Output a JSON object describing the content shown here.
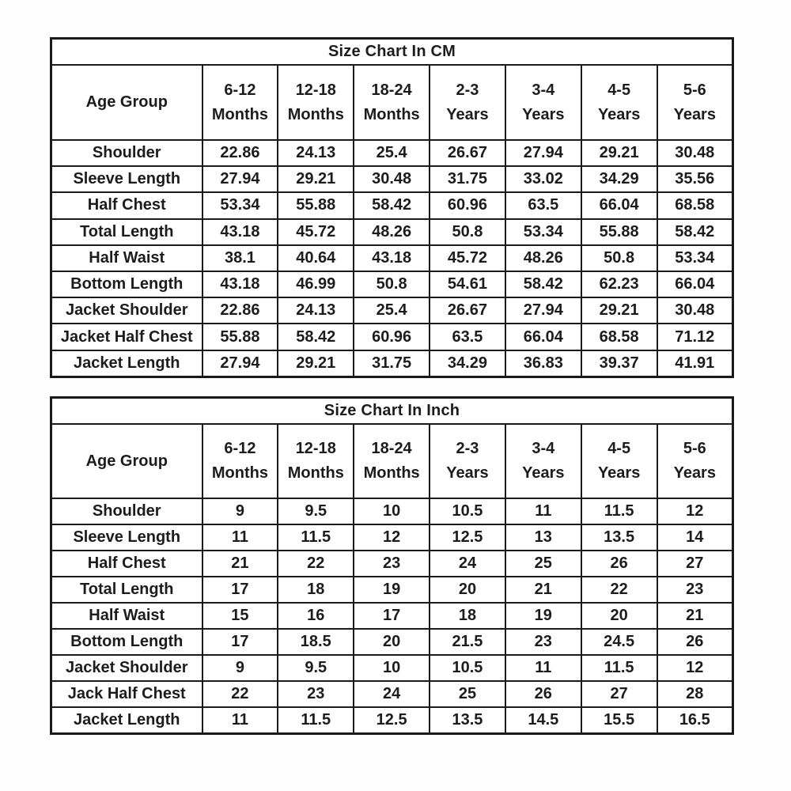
{
  "page": {
    "background": "#ffffff"
  },
  "styles": {
    "border_color": "#1a1a1a",
    "text_color": "#1c1c1c",
    "cell_background": "#ffffff"
  },
  "tables": [
    {
      "id": "cm",
      "title": "Size Chart In CM",
      "header_label": "Age Group",
      "columns": [
        {
          "line1": "6-12",
          "line2": "Months"
        },
        {
          "line1": "12-18",
          "line2": "Months"
        },
        {
          "line1": "18-24",
          "line2": "Months"
        },
        {
          "line1": "2-3",
          "line2": "Years"
        },
        {
          "line1": "3-4",
          "line2": "Years"
        },
        {
          "line1": "4-5",
          "line2": "Years"
        },
        {
          "line1": "5-6",
          "line2": "Years"
        }
      ],
      "rows": [
        {
          "label": "Shoulder",
          "values": [
            "22.86",
            "24.13",
            "25.4",
            "26.67",
            "27.94",
            "29.21",
            "30.48"
          ]
        },
        {
          "label": "Sleeve Length",
          "values": [
            "27.94",
            "29.21",
            "30.48",
            "31.75",
            "33.02",
            "34.29",
            "35.56"
          ]
        },
        {
          "label": "Half Chest",
          "values": [
            "53.34",
            "55.88",
            "58.42",
            "60.96",
            "63.5",
            "66.04",
            "68.58"
          ]
        },
        {
          "label": "Total Length",
          "values": [
            "43.18",
            "45.72",
            "48.26",
            "50.8",
            "53.34",
            "55.88",
            "58.42"
          ]
        },
        {
          "label": "Half Waist",
          "values": [
            "38.1",
            "40.64",
            "43.18",
            "45.72",
            "48.26",
            "50.8",
            "53.34"
          ]
        },
        {
          "label": "Bottom Length",
          "values": [
            "43.18",
            "46.99",
            "50.8",
            "54.61",
            "58.42",
            "62.23",
            "66.04"
          ]
        },
        {
          "label": "Jacket Shoulder",
          "values": [
            "22.86",
            "24.13",
            "25.4",
            "26.67",
            "27.94",
            "29.21",
            "30.48"
          ]
        },
        {
          "label": "Jacket Half Chest",
          "values": [
            "55.88",
            "58.42",
            "60.96",
            "63.5",
            "66.04",
            "68.58",
            "71.12"
          ]
        },
        {
          "label": "Jacket Length",
          "values": [
            "27.94",
            "29.21",
            "31.75",
            "34.29",
            "36.83",
            "39.37",
            "41.91"
          ]
        }
      ]
    },
    {
      "id": "inch",
      "title": "Size Chart In Inch",
      "header_label": "Age Group",
      "columns": [
        {
          "line1": "6-12",
          "line2": "Months"
        },
        {
          "line1": "12-18",
          "line2": "Months"
        },
        {
          "line1": "18-24",
          "line2": "Months"
        },
        {
          "line1": "2-3",
          "line2": "Years"
        },
        {
          "line1": "3-4",
          "line2": "Years"
        },
        {
          "line1": "4-5",
          "line2": "Years"
        },
        {
          "line1": "5-6",
          "line2": "Years"
        }
      ],
      "rows": [
        {
          "label": "Shoulder",
          "values": [
            "9",
            "9.5",
            "10",
            "10.5",
            "11",
            "11.5",
            "12"
          ]
        },
        {
          "label": "Sleeve Length",
          "values": [
            "11",
            "11.5",
            "12",
            "12.5",
            "13",
            "13.5",
            "14"
          ]
        },
        {
          "label": "Half Chest",
          "values": [
            "21",
            "22",
            "23",
            "24",
            "25",
            "26",
            "27"
          ]
        },
        {
          "label": "Total Length",
          "values": [
            "17",
            "18",
            "19",
            "20",
            "21",
            "22",
            "23"
          ]
        },
        {
          "label": "Half Waist",
          "values": [
            "15",
            "16",
            "17",
            "18",
            "19",
            "20",
            "21"
          ]
        },
        {
          "label": "Bottom Length",
          "values": [
            "17",
            "18.5",
            "20",
            "21.5",
            "23",
            "24.5",
            "26"
          ]
        },
        {
          "label": "Jacket Shoulder",
          "values": [
            "9",
            "9.5",
            "10",
            "10.5",
            "11",
            "11.5",
            "12"
          ]
        },
        {
          "label": "Jack Half Chest",
          "values": [
            "22",
            "23",
            "24",
            "25",
            "26",
            "27",
            "28"
          ]
        },
        {
          "label": "Jacket Length",
          "values": [
            "11",
            "11.5",
            "12.5",
            "13.5",
            "14.5",
            "15.5",
            "16.5"
          ]
        }
      ]
    }
  ]
}
